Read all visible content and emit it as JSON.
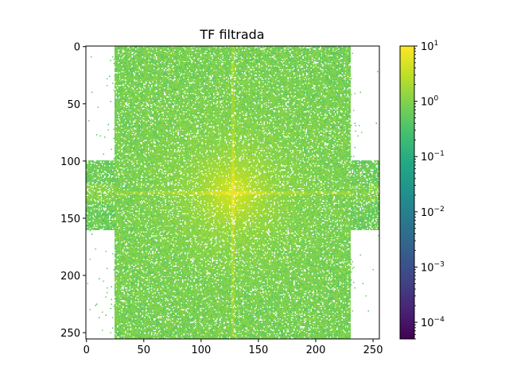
{
  "chart_data": {
    "type": "heatmap",
    "title": "TF filtrada",
    "image_shape": [
      256,
      256
    ],
    "xlim": [
      0,
      255
    ],
    "ylim": [
      255,
      0
    ],
    "xticks": [
      0,
      50,
      100,
      150,
      200,
      250
    ],
    "yticks": [
      0,
      50,
      100,
      150,
      200,
      250
    ],
    "xtick_labels": [
      "0",
      "50",
      "100",
      "150",
      "200",
      "250"
    ],
    "ytick_labels": [
      "0",
      "50",
      "100",
      "150",
      "200",
      "250"
    ],
    "colorbar": {
      "scale": "log",
      "colormap": "viridis",
      "range": [
        5e-05,
        10
      ],
      "ticks": [
        10,
        1,
        0.1,
        0.01,
        0.001,
        0.0001
      ],
      "tick_labels": [
        {
          "base": "10",
          "exp": "1"
        },
        {
          "base": "10",
          "exp": "0"
        },
        {
          "base": "10",
          "exp": "−1"
        },
        {
          "base": "10",
          "exp": "−2"
        },
        {
          "base": "10",
          "exp": "−3"
        },
        {
          "base": "10",
          "exp": "−4"
        }
      ]
    },
    "data_description_values": {
      "center": [
        128,
        128
      ],
      "peak_value": 5,
      "typical_value": 0.8,
      "band_columns": [
        25,
        230
      ],
      "side_strip_rows": [
        100,
        160
      ]
    }
  }
}
